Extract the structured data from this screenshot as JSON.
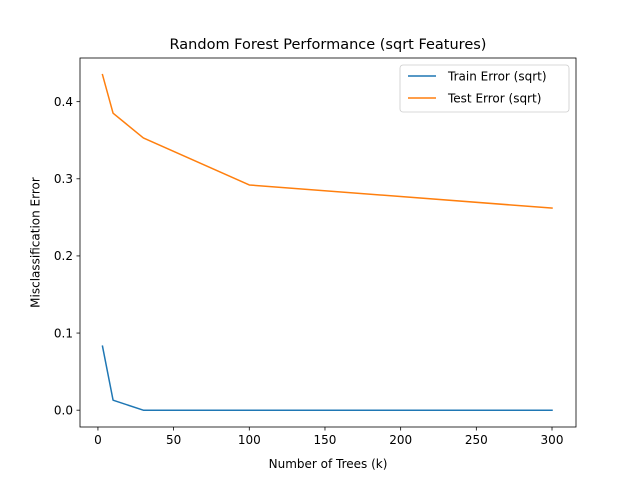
{
  "chart_data": {
    "type": "line",
    "title": "Random Forest Performance (sqrt Features)",
    "xlabel": "Number of Trees (k)",
    "ylabel": "Misclassification Error",
    "xlim": [
      -11.85,
      315.85
    ],
    "ylim": [
      -0.0218,
      0.4566
    ],
    "xticks": [
      0,
      50,
      100,
      150,
      200,
      250,
      300
    ],
    "yticks": [
      0.0,
      0.1,
      0.2,
      0.3,
      0.4
    ],
    "ytick_labels": [
      "0.0",
      "0.1",
      "0.2",
      "0.3",
      "0.4"
    ],
    "grid": false,
    "legend_position": "top-right",
    "series": [
      {
        "name": "Train Error (sqrt)",
        "color": "#1f77b4",
        "x": [
          3,
          10,
          30,
          100,
          300
        ],
        "y": [
          0.083,
          0.013,
          0.0,
          0.0,
          0.0
        ]
      },
      {
        "name": "Test Error (sqrt)",
        "color": "#ff7f0e",
        "x": [
          3,
          10,
          30,
          100,
          300
        ],
        "y": [
          0.435,
          0.385,
          0.353,
          0.292,
          0.262
        ]
      }
    ]
  }
}
